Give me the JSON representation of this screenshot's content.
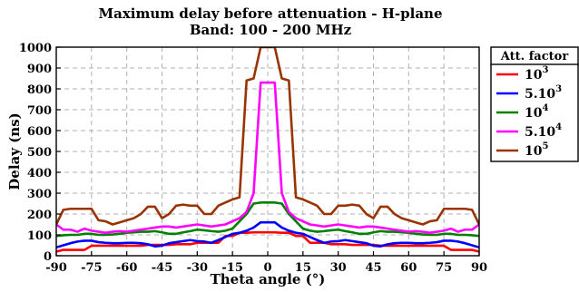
{
  "chart_data": {
    "type": "line",
    "title": "Maximum delay before attenuation - H-plane",
    "subtitle": "Band: 100 - 200 MHz",
    "xlabel": "Theta angle (°)",
    "ylabel": "Delay (ns)",
    "xlim": [
      -90,
      90
    ],
    "ylim": [
      0,
      1000
    ],
    "xticks": [
      -90,
      -75,
      -60,
      -45,
      -30,
      -15,
      0,
      15,
      30,
      45,
      60,
      75,
      90
    ],
    "yticks": [
      0,
      100,
      200,
      300,
      400,
      500,
      600,
      700,
      800,
      900,
      1000
    ],
    "grid": true,
    "legend": {
      "title": "Att. factor",
      "placement": "outside-right"
    },
    "x": [
      -90,
      -87,
      -84,
      -81,
      -78,
      -75,
      -72,
      -69,
      -66,
      -63,
      -60,
      -57,
      -54,
      -51,
      -48,
      -45,
      -42,
      -39,
      -36,
      -33,
      -30,
      -27,
      -24,
      -21,
      -18,
      -15,
      -12,
      -9,
      -6,
      -3,
      0,
      3,
      6,
      9,
      12,
      15,
      18,
      21,
      24,
      27,
      30,
      33,
      36,
      39,
      42,
      45,
      48,
      51,
      54,
      57,
      60,
      63,
      66,
      69,
      72,
      75,
      78,
      81,
      84,
      87,
      90
    ],
    "series": [
      {
        "name": "10^3",
        "base": "10",
        "exp": "3",
        "color": "#ff0000",
        "values": [
          20,
          28,
          28,
          28,
          28,
          48,
          48,
          48,
          48,
          48,
          48,
          48,
          48,
          52,
          52,
          52,
          52,
          55,
          55,
          55,
          62,
          62,
          62,
          62,
          95,
          95,
          110,
          110,
          112,
          112,
          112,
          112,
          110,
          110,
          95,
          95,
          62,
          62,
          62,
          55,
          55,
          55,
          52,
          52,
          52,
          52,
          48,
          48,
          48,
          48,
          48,
          48,
          48,
          48,
          48,
          48,
          28,
          28,
          28,
          28,
          20
        ]
      },
      {
        "name": "5.10^3",
        "base": "5.10",
        "exp": "3",
        "color": "#0000ff",
        "values": [
          40,
          50,
          60,
          68,
          72,
          72,
          65,
          62,
          60,
          60,
          62,
          62,
          60,
          55,
          45,
          48,
          60,
          65,
          70,
          75,
          70,
          68,
          62,
          75,
          90,
          105,
          110,
          120,
          135,
          160,
          160,
          160,
          135,
          120,
          110,
          105,
          90,
          75,
          62,
          68,
          70,
          75,
          70,
          65,
          60,
          48,
          45,
          55,
          60,
          62,
          62,
          60,
          60,
          62,
          65,
          72,
          72,
          68,
          60,
          50,
          40
        ]
      },
      {
        "name": "10^4",
        "base": "10",
        "exp": "4",
        "color": "#008000",
        "values": [
          95,
          98,
          100,
          100,
          105,
          105,
          100,
          100,
          102,
          105,
          110,
          112,
          115,
          115,
          118,
          112,
          105,
          105,
          112,
          118,
          125,
          122,
          118,
          115,
          120,
          130,
          165,
          200,
          250,
          255,
          255,
          255,
          250,
          200,
          165,
          130,
          120,
          115,
          118,
          122,
          125,
          118,
          112,
          105,
          105,
          112,
          118,
          115,
          115,
          112,
          110,
          105,
          102,
          100,
          100,
          105,
          105,
          100,
          100,
          98,
          95
        ]
      },
      {
        "name": "5.10^4",
        "base": "5.10",
        "exp": "4",
        "color": "#ff00ff",
        "values": [
          150,
          125,
          125,
          115,
          130,
          120,
          115,
          110,
          115,
          118,
          115,
          120,
          125,
          130,
          135,
          140,
          140,
          135,
          140,
          145,
          150,
          145,
          140,
          145,
          150,
          165,
          180,
          210,
          300,
          830,
          830,
          830,
          300,
          210,
          180,
          165,
          150,
          145,
          140,
          145,
          150,
          145,
          140,
          135,
          140,
          140,
          135,
          130,
          125,
          120,
          115,
          118,
          115,
          110,
          115,
          120,
          130,
          115,
          125,
          125,
          150
        ]
      },
      {
        "name": "10^5",
        "base": "10",
        "exp": "5",
        "color": "#993300",
        "values": [
          150,
          220,
          225,
          225,
          225,
          225,
          170,
          165,
          150,
          160,
          170,
          180,
          200,
          235,
          235,
          180,
          200,
          240,
          245,
          240,
          240,
          200,
          200,
          240,
          255,
          270,
          280,
          840,
          850,
          1000,
          1000,
          1000,
          850,
          840,
          280,
          270,
          255,
          240,
          200,
          200,
          240,
          240,
          245,
          240,
          200,
          180,
          235,
          235,
          200,
          180,
          170,
          160,
          150,
          165,
          170,
          225,
          225,
          225,
          225,
          220,
          150
        ]
      }
    ]
  }
}
